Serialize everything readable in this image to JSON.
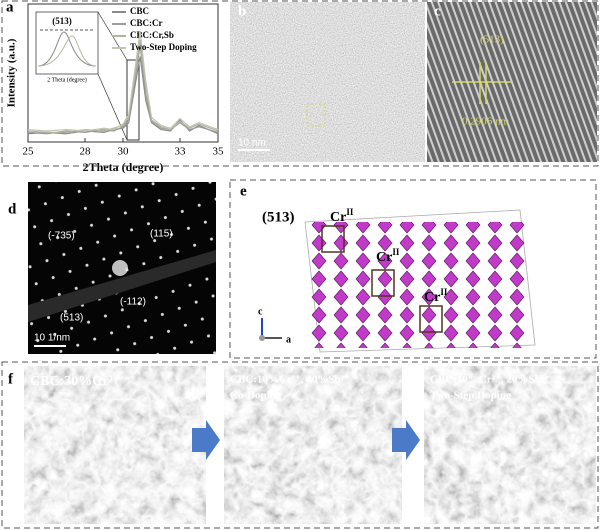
{
  "panel_labels": [
    "a",
    "b",
    "c",
    "d",
    "e",
    "f"
  ],
  "chart_data": {
    "type": "line",
    "x_label": "2Theta (degree)",
    "y_label": "Intensity (a.u.)",
    "x": [
      25,
      26,
      27,
      28,
      29,
      29.5,
      30,
      30.3,
      30.6,
      30.9,
      31.2,
      31.5,
      32,
      32.5,
      33,
      33.5,
      34,
      35
    ],
    "series": [
      {
        "name": "CBC",
        "color": "#8a8a8a",
        "values": [
          6,
          7,
          6,
          8,
          7,
          9,
          10,
          14,
          38,
          62,
          30,
          14,
          9,
          8,
          16,
          8,
          12,
          6
        ]
      },
      {
        "name": "CBC:Cr",
        "color": "#9c9c9c",
        "values": [
          7,
          6,
          8,
          7,
          9,
          8,
          11,
          16,
          42,
          70,
          34,
          15,
          10,
          9,
          14,
          9,
          11,
          7
        ]
      },
      {
        "name": "CBC:Cr,Sb",
        "color": "#b2b2a2",
        "values": [
          8,
          7,
          7,
          9,
          8,
          10,
          12,
          18,
          46,
          74,
          40,
          16,
          11,
          9,
          15,
          10,
          13,
          8
        ]
      },
      {
        "name": "Two-Step Doping",
        "color": "#c4c4b0",
        "values": [
          9,
          8,
          9,
          8,
          10,
          9,
          13,
          20,
          50,
          80,
          44,
          18,
          12,
          10,
          17,
          11,
          14,
          9
        ]
      }
    ],
    "xlim": [
      25,
      35
    ],
    "xticks": [
      25,
      28,
      30,
      33,
      35
    ],
    "ylim": [
      0,
      100
    ]
  },
  "inset": {
    "title": "(513)",
    "x_label": "2 Theta (degree)"
  },
  "panel_b": {
    "scale_bar": "10 nm"
  },
  "panel_c": {
    "plane": "(513)",
    "spacing": "0.2906 nm"
  },
  "panel_d": {
    "spots": [
      "(-735)",
      "(115)",
      "(-112)",
      "(513)"
    ],
    "scale_bar": "10 1/nm"
  },
  "panel_e": {
    "plane": "(513)",
    "sites": [
      {
        "element": "Cr",
        "charge": "II"
      },
      {
        "element": "Cr",
        "charge": "II"
      },
      {
        "element": "Cr",
        "charge": "II"
      }
    ],
    "axes": [
      "c",
      "a"
    ]
  },
  "panel_f": {
    "samples": [
      {
        "label": "CBC:30%Cr³⁺"
      },
      {
        "label": "CBC:10%Cr³⁺, 20%Sb³⁺",
        "note": "Co-Doping"
      },
      {
        "label": "CBC:10%Cr³⁺, 20%Sb³⁺",
        "note": "Two-Step Doping"
      }
    ]
  }
}
